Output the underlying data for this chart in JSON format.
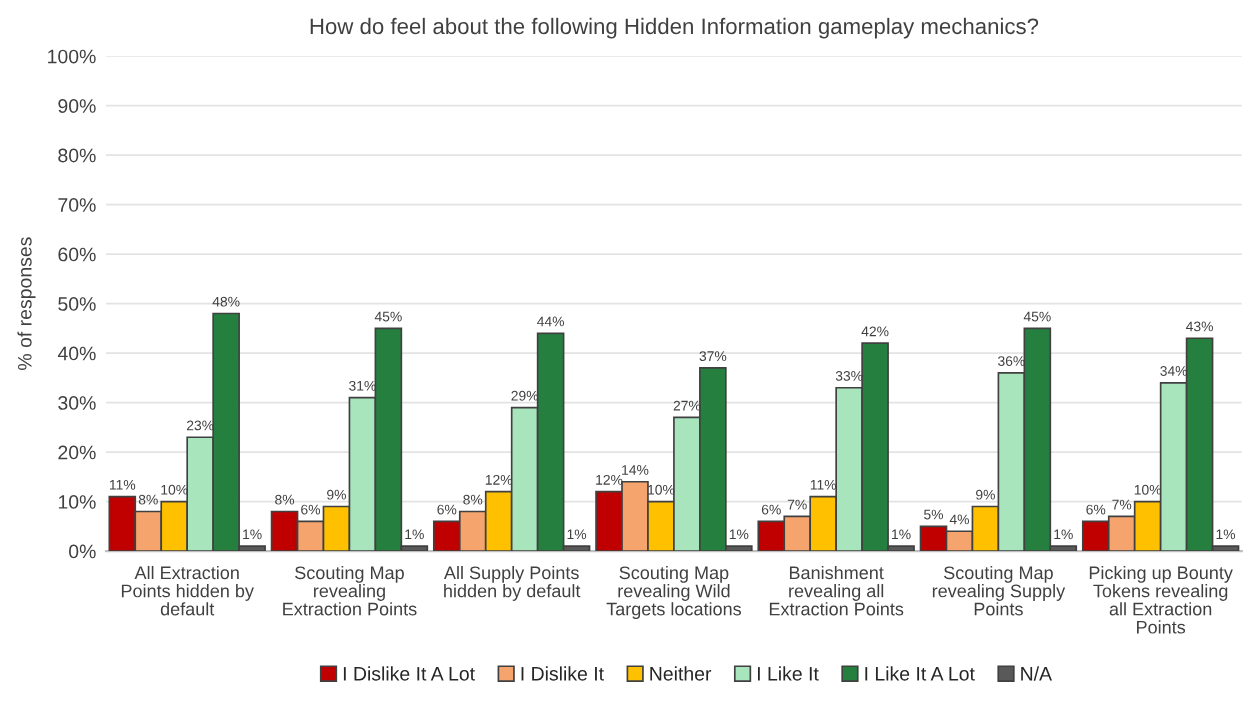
{
  "chart_data": {
    "type": "bar",
    "title": "How do feel about the following Hidden Information gameplay mechanics?",
    "ylabel": "% of responses",
    "categories": [
      "All Extraction Points hidden by default",
      "Scouting Map revealing Extraction Points",
      "All Supply Points hidden by default",
      "Scouting Map revealing Wild Targets locations",
      "Banishment revealing all Extraction Points",
      "Scouting Map revealing Supply Points",
      "Picking up Bounty Tokens revealing all Extraction Points"
    ],
    "series": [
      {
        "name": "I Dislike It A Lot",
        "color": "#c00000",
        "values": [
          11,
          8,
          6,
          12,
          6,
          5,
          6
        ],
        "value_labels": [
          "11%",
          "8%",
          "6%",
          "12%",
          "6%",
          "5%",
          "6%"
        ]
      },
      {
        "name": "I Dislike It",
        "color": "#f4a46c",
        "values": [
          8,
          6,
          8,
          14,
          7,
          4,
          7
        ],
        "value_labels": [
          "8%",
          "6%",
          "8%",
          "14%",
          "7%",
          "4%",
          "7%"
        ]
      },
      {
        "name": "Neither",
        "color": "#ffc000",
        "values": [
          10,
          9,
          12,
          10,
          11,
          9,
          10
        ],
        "value_labels": [
          "10%",
          "9%",
          "12%",
          "10%",
          "11%",
          "9%",
          "10%"
        ]
      },
      {
        "name": "I Like It",
        "color": "#a8e4bc",
        "values": [
          23,
          31,
          29,
          27,
          33,
          36,
          34
        ],
        "value_labels": [
          "23%",
          "31%",
          "29%",
          "27%",
          "33%",
          "36%",
          "34%"
        ]
      },
      {
        "name": "I Like It A Lot",
        "color": "#25803f",
        "values": [
          48,
          45,
          44,
          37,
          42,
          45,
          43
        ],
        "value_labels": [
          "48%",
          "45%",
          "44%",
          "37%",
          "42%",
          "45%",
          "43%"
        ]
      },
      {
        "name": "N/A",
        "color": "#595959",
        "values": [
          1,
          1,
          1,
          1,
          1,
          1,
          1
        ],
        "value_labels": [
          "1%",
          "1%",
          "1%",
          "1%",
          "1%",
          "1%",
          "1%"
        ]
      }
    ],
    "ylim": [
      0,
      100
    ],
    "yticks": [
      {
        "value": 0,
        "label": "0%"
      },
      {
        "value": 10,
        "label": "10%"
      },
      {
        "value": 20,
        "label": "20%"
      },
      {
        "value": 30,
        "label": "30%"
      },
      {
        "value": 40,
        "label": "40%"
      },
      {
        "value": 50,
        "label": "50%"
      },
      {
        "value": 60,
        "label": "60%"
      },
      {
        "value": 70,
        "label": "70%"
      },
      {
        "value": 80,
        "label": "80%"
      },
      {
        "value": 90,
        "label": "90%"
      },
      {
        "value": 100,
        "label": "100%"
      }
    ],
    "grid": "y",
    "legend": "bottom"
  }
}
